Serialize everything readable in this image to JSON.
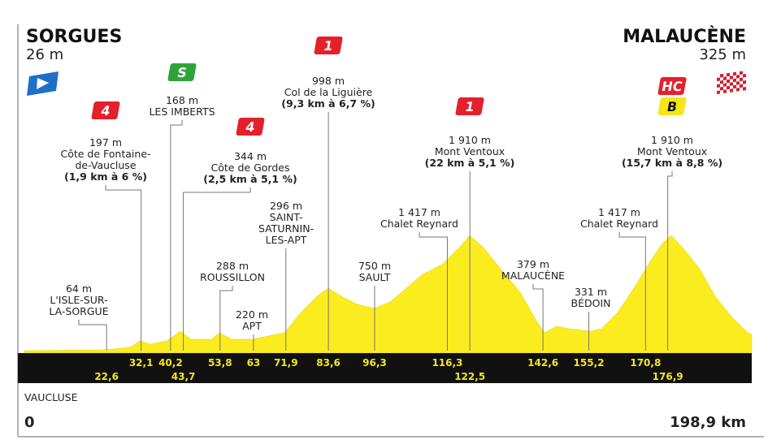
{
  "start": {
    "town": "SORGUES",
    "elevation": "26 m"
  },
  "finish": {
    "town": "MALAUCÈNE",
    "elevation": "325 m"
  },
  "footer": {
    "department": "VAUCLUSE",
    "start_km": "0",
    "total_km": "198,9 km"
  },
  "km_markers": [
    "22,6",
    "32,1",
    "40,2",
    "43,7",
    "53,8",
    "63",
    "71,9",
    "83,6",
    "96,3",
    "116,3",
    "122,5",
    "142,6",
    "155,2",
    "170,8",
    "176,9"
  ],
  "annotations": [
    {
      "elevation": "64 m",
      "name": [
        "L'ISLE-SUR-",
        "LA-SORGUE"
      ]
    },
    {
      "elevation": "197 m",
      "name": [
        "Côte de Fontaine-",
        "de-Vaucluse"
      ],
      "detail": "(1,9 km à 6 %)",
      "badges": [
        {
          "label": "4",
          "color": "#e3202b"
        }
      ]
    },
    {
      "elevation": "168 m",
      "name": [
        "LES IMBERTS"
      ],
      "badges": [
        {
          "label": "S",
          "color": "#2fa33a"
        }
      ]
    },
    {
      "elevation": "344 m",
      "name": [
        "Côte de Gordes"
      ],
      "detail": "(2,5 km à 5,1 %)",
      "badges": [
        {
          "label": "4",
          "color": "#e3202b"
        }
      ]
    },
    {
      "elevation": "296 m",
      "name": [
        "SAINT-",
        "SATURNIN-",
        "LES-APT"
      ]
    },
    {
      "elevation": "288 m",
      "name": [
        "ROUSSILLON"
      ]
    },
    {
      "elevation": "220 m",
      "name": [
        "APT"
      ]
    },
    {
      "elevation": "998 m",
      "name": [
        "Col de la Liguière"
      ],
      "detail": "(9,3 km à 6,7 %)",
      "badges": [
        {
          "label": "1",
          "color": "#e3202b"
        }
      ]
    },
    {
      "elevation": "750 m",
      "name": [
        "SAULT"
      ]
    },
    {
      "elevation": "1 417 m",
      "name": [
        "Chalet Reynard"
      ]
    },
    {
      "elevation": "1 910 m",
      "name": [
        "Mont Ventoux"
      ],
      "detail": "(22 km à 5,1 %)",
      "badges": [
        {
          "label": "1",
          "color": "#e3202b"
        }
      ]
    },
    {
      "elevation": "379 m",
      "name": [
        "MALAUCÈNE"
      ]
    },
    {
      "elevation": "331 m",
      "name": [
        "BÉDOIN"
      ]
    },
    {
      "elevation": "1 417 m",
      "name": [
        "Chalet Reynard"
      ]
    },
    {
      "elevation": "1 910 m",
      "name": [
        "Mont Ventoux"
      ],
      "detail": "(15,7 km à 8,8 %)",
      "badges": [
        {
          "label": "HC",
          "color": "#e3202b"
        },
        {
          "label": "B",
          "color": "#f5e61c",
          "text": "#111"
        }
      ]
    }
  ]
}
